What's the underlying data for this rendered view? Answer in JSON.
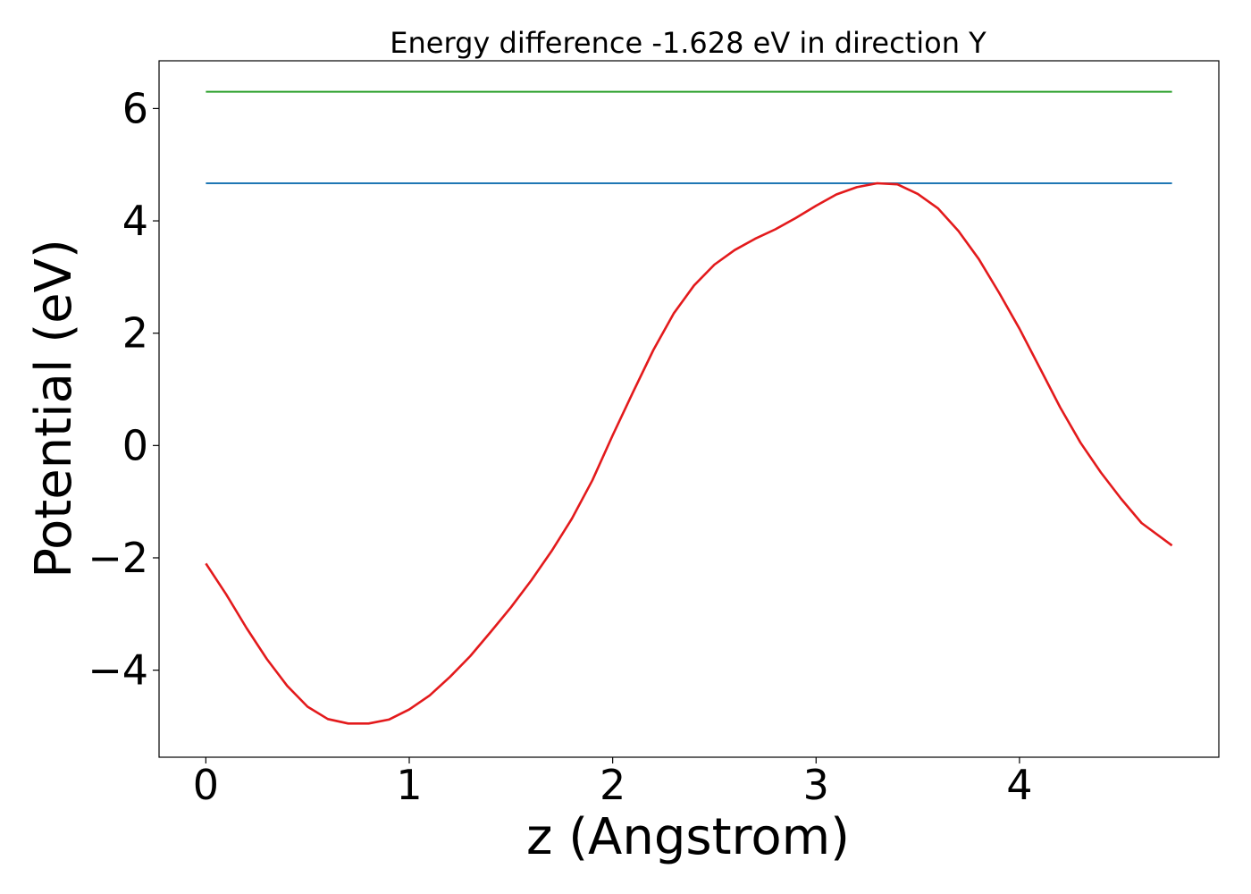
{
  "chart_data": {
    "type": "line",
    "title": "Energy difference -1.628 eV in direction Y",
    "xlabel": "z (Angstrom)",
    "ylabel": "Potential (eV)",
    "xlim": [
      -0.23,
      4.98
    ],
    "ylim": [
      -5.55,
      6.85
    ],
    "xticks": [
      0,
      1,
      2,
      3,
      4
    ],
    "xtick_labels": [
      "0",
      "1",
      "2",
      "3",
      "4"
    ],
    "yticks": [
      -4,
      -2,
      0,
      2,
      4,
      6
    ],
    "ytick_labels": [
      "−4",
      "−2",
      "0",
      "2",
      "4",
      "6"
    ],
    "grid": false,
    "legend": "none",
    "series": [
      {
        "kind": "hline",
        "color": "#2ca02c",
        "x": [
          0,
          4.75
        ],
        "values": [
          6.3,
          6.3
        ]
      },
      {
        "kind": "hline",
        "color": "#1f77b4",
        "x": [
          0,
          4.75
        ],
        "values": [
          4.67,
          4.67
        ]
      },
      {
        "kind": "curve",
        "color": "#e31a1c",
        "x": [
          0,
          0.1,
          0.2,
          0.3,
          0.4,
          0.5,
          0.6,
          0.7,
          0.8,
          0.9,
          1.0,
          1.1,
          1.2,
          1.3,
          1.4,
          1.5,
          1.6,
          1.7,
          1.8,
          1.9,
          2.0,
          2.1,
          2.2,
          2.3,
          2.4,
          2.5,
          2.6,
          2.7,
          2.8,
          2.9,
          3.0,
          3.1,
          3.2,
          3.3,
          3.4,
          3.5,
          3.6,
          3.7,
          3.8,
          3.9,
          4.0,
          4.1,
          4.2,
          4.3,
          4.4,
          4.5,
          4.6,
          4.75
        ],
        "values": [
          -2.1,
          -2.65,
          -3.25,
          -3.8,
          -4.28,
          -4.65,
          -4.87,
          -4.95,
          -4.95,
          -4.88,
          -4.7,
          -4.45,
          -4.12,
          -3.75,
          -3.32,
          -2.88,
          -2.4,
          -1.88,
          -1.3,
          -0.62,
          0.18,
          0.95,
          1.7,
          2.35,
          2.85,
          3.22,
          3.48,
          3.68,
          3.85,
          4.05,
          4.27,
          4.47,
          4.6,
          4.67,
          4.65,
          4.48,
          4.22,
          3.82,
          3.32,
          2.72,
          2.08,
          1.38,
          0.68,
          0.05,
          -0.48,
          -0.95,
          -1.38,
          -1.78
        ]
      }
    ]
  }
}
